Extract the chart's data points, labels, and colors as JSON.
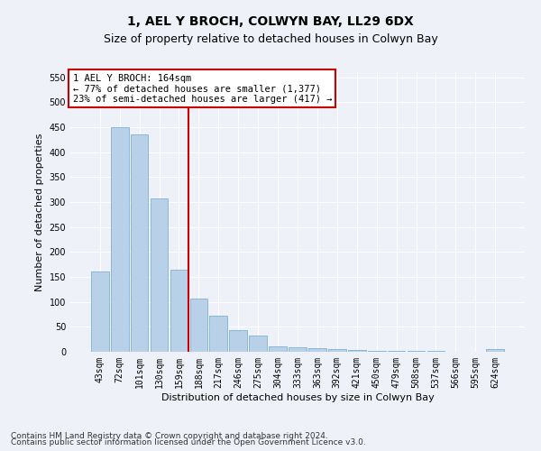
{
  "title": "1, AEL Y BROCH, COLWYN BAY, LL29 6DX",
  "subtitle": "Size of property relative to detached houses in Colwyn Bay",
  "xlabel": "Distribution of detached houses by size in Colwyn Bay",
  "ylabel": "Number of detached properties",
  "categories": [
    "43sqm",
    "72sqm",
    "101sqm",
    "130sqm",
    "159sqm",
    "188sqm",
    "217sqm",
    "246sqm",
    "275sqm",
    "304sqm",
    "333sqm",
    "363sqm",
    "392sqm",
    "421sqm",
    "450sqm",
    "479sqm",
    "508sqm",
    "537sqm",
    "566sqm",
    "595sqm",
    "624sqm"
  ],
  "values": [
    160,
    450,
    435,
    308,
    165,
    107,
    73,
    44,
    32,
    10,
    9,
    8,
    5,
    3,
    2,
    1,
    1,
    1,
    0,
    0,
    5
  ],
  "bar_color": "#b8d0e8",
  "bar_edge_color": "#6fa8d0",
  "marker_line_color": "#cc0000",
  "annotation_text": "1 AEL Y BROCH: 164sqm\n← 77% of detached houses are smaller (1,377)\n23% of semi-detached houses are larger (417) →",
  "annotation_box_color": "#ffffff",
  "annotation_box_edge_color": "#cc0000",
  "ylim": [
    0,
    560
  ],
  "yticks": [
    0,
    50,
    100,
    150,
    200,
    250,
    300,
    350,
    400,
    450,
    500,
    550
  ],
  "footer_line1": "Contains HM Land Registry data © Crown copyright and database right 2024.",
  "footer_line2": "Contains public sector information licensed under the Open Government Licence v3.0.",
  "bg_color": "#eef2f8",
  "grid_color": "#ffffff",
  "title_fontsize": 10,
  "subtitle_fontsize": 9,
  "label_fontsize": 8,
  "tick_fontsize": 7,
  "footer_fontsize": 6.5,
  "annot_fontsize": 7.5
}
